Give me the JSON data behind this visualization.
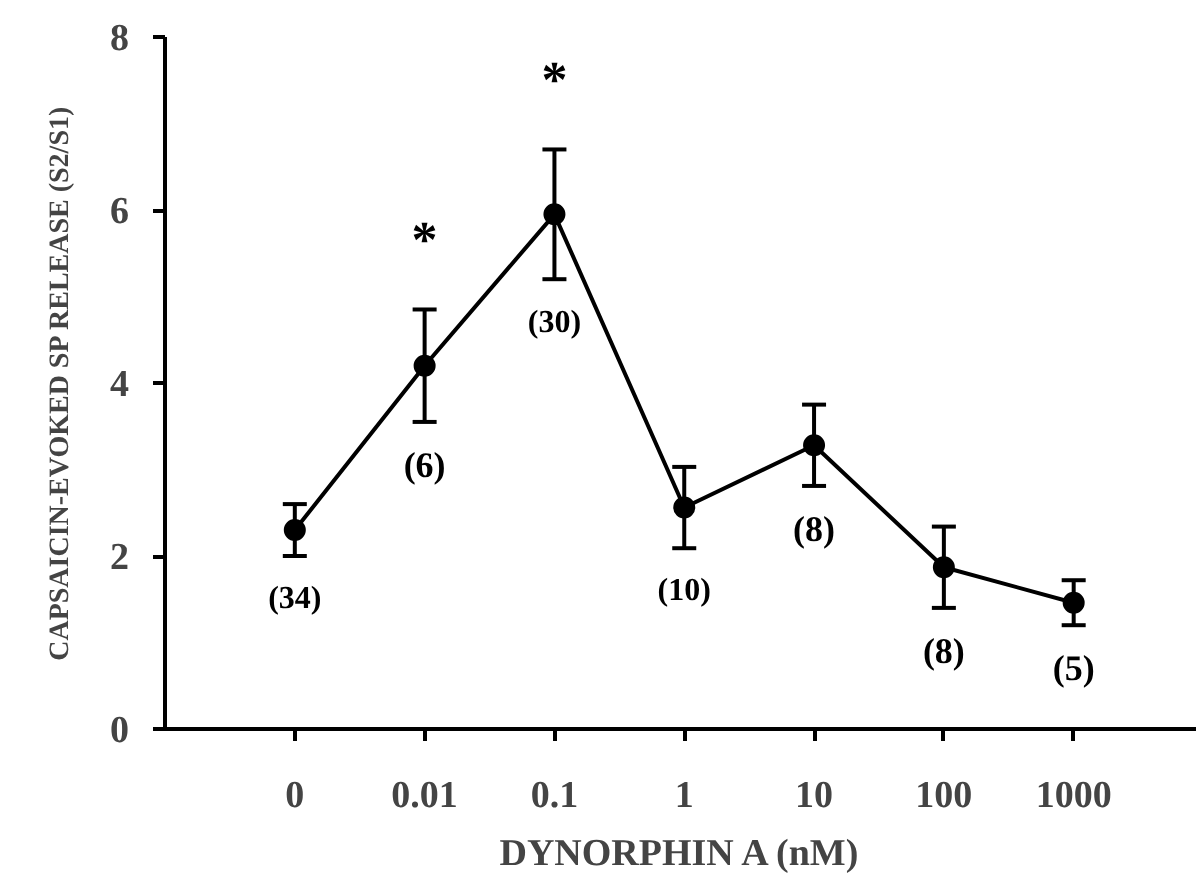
{
  "chart_data": {
    "type": "line",
    "xlabel": "DYNORPHIN A (nM)",
    "ylabel": "CAPSAICIN-EVOKED SP RELEASE (S2/S1)",
    "categories": [
      "0",
      "0.01",
      "0.1",
      "1",
      "10",
      "100",
      "1000"
    ],
    "series": [
      {
        "color": "#000000",
        "values": [
          2.3,
          4.2,
          5.95,
          2.56,
          3.28,
          1.87,
          1.46
        ],
        "errors": [
          0.3,
          0.65,
          0.75,
          0.47,
          0.47,
          0.47,
          0.26
        ]
      }
    ],
    "ylim": [
      0,
      8
    ],
    "yticks": [
      0,
      2,
      4,
      6,
      8
    ],
    "grid": false,
    "legend": false,
    "marker": "circle",
    "line_style": "solid",
    "annotations": [
      {
        "text": "*",
        "x": "0.01",
        "y": 4.2
      },
      {
        "text": "*",
        "x": "0.1",
        "y": 5.95
      },
      {
        "text": "(34)",
        "x": "0",
        "y": 2.3
      },
      {
        "text": "(6)",
        "x": "0.01",
        "y": 4.2
      },
      {
        "text": "(30)",
        "x": "0.1",
        "y": 5.95
      },
      {
        "text": "(10)",
        "x": "1",
        "y": 2.56
      },
      {
        "text": "(8)",
        "x": "10",
        "y": 3.28
      },
      {
        "text": "(8)",
        "x": "100",
        "y": 1.87
      },
      {
        "text": "(5)",
        "x": "1000",
        "y": 1.46
      }
    ]
  }
}
